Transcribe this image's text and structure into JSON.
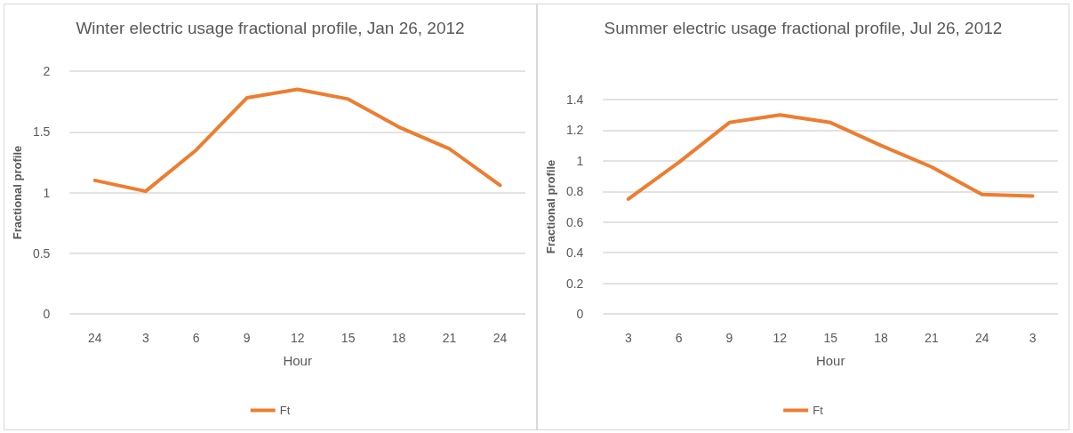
{
  "chart_data": [
    {
      "type": "line",
      "title": "Winter electric usage fractional profile, Jan 26, 2012",
      "xlabel": "Hour",
      "ylabel": "Fractional profile",
      "categories": [
        "24",
        "3",
        "6",
        "9",
        "12",
        "15",
        "18",
        "21",
        "24"
      ],
      "series": [
        {
          "name": "Ft",
          "color": "#ed7d31",
          "values": [
            1.1,
            1.01,
            1.35,
            1.78,
            1.85,
            1.77,
            1.54,
            1.36,
            1.06
          ]
        }
      ],
      "ylim": [
        0,
        2
      ],
      "yticks": [
        0,
        0.5,
        1,
        1.5,
        2
      ],
      "grid": "y",
      "legend": "bottom",
      "marker": "none",
      "line_style": "solid"
    },
    {
      "type": "line",
      "title": "Summer electric usage fractional profile, Jul 26, 2012",
      "xlabel": "Hour",
      "ylabel": "Fractional profile",
      "categories": [
        "3",
        "6",
        "9",
        "12",
        "15",
        "18",
        "21",
        "24",
        "3"
      ],
      "series": [
        {
          "name": "Ft",
          "color": "#ed7d31",
          "values": [
            0.75,
            0.99,
            1.25,
            1.3,
            1.25,
            1.1,
            0.96,
            0.78,
            0.77
          ]
        }
      ],
      "ylim": [
        0,
        1.4
      ],
      "yticks": [
        0,
        0.2,
        0.4,
        0.6,
        0.8,
        1,
        1.2,
        1.4
      ],
      "grid": "y",
      "legend": "bottom",
      "marker": "none",
      "line_style": "solid"
    }
  ]
}
